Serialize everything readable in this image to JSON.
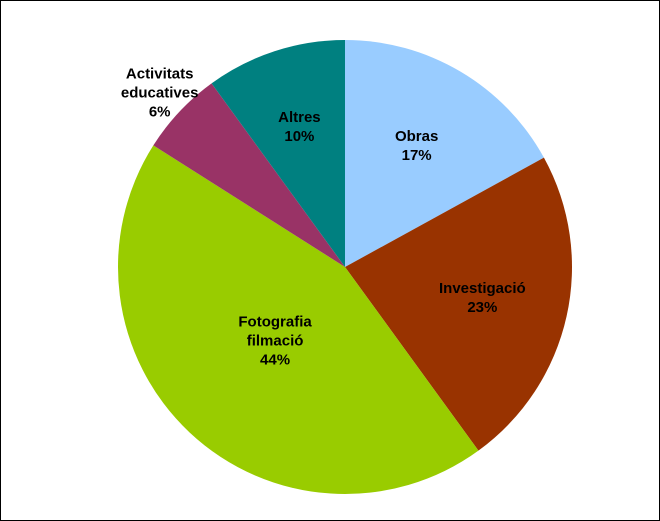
{
  "chart_data": {
    "type": "pie",
    "categories": [
      "Obras",
      "Investigació",
      "Fotografia filmació",
      "Activitats educatives",
      "Altres"
    ],
    "values": [
      17,
      23,
      44,
      6,
      10
    ],
    "value_labels": [
      "17%",
      "23%",
      "44%",
      "6%",
      "10%"
    ],
    "colors": [
      "#99ccff",
      "#993300",
      "#99cc00",
      "#993366",
      "#008080"
    ]
  }
}
